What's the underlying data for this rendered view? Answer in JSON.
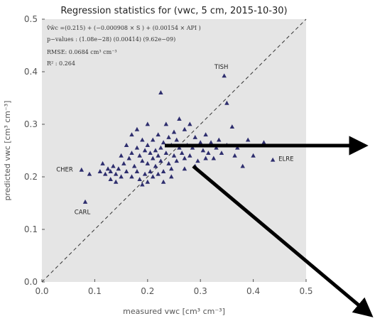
{
  "chart_data": {
    "type": "scatter",
    "title": "Regression statistics for (vwc, 5 cm, 2015-10-30)",
    "xlabel": "measured vwc [cm³  cm⁻³]",
    "ylabel": "predicted vwc [cm³  cm⁻³]",
    "xlim": [
      0.0,
      0.5
    ],
    "ylim": [
      0.0,
      0.5
    ],
    "xticks": [
      "0.0",
      "0.1",
      "0.2",
      "0.3",
      "0.4",
      "0.5"
    ],
    "yticks": [
      "0.0",
      "0.1",
      "0.2",
      "0.3",
      "0.4",
      "0.5"
    ],
    "grid": false,
    "background": "#e5e5e5",
    "marker_color": "#2e2e6e",
    "reference_line": "1:1 dashed",
    "annotations": [
      "v̂w̃c =(0.215) + (−0.000908 × S ) + (0.00154 × API )",
      "p−values : (1.08e−28) (0.00414) (9.62e−09)",
      "RMSE: 0.0684 cm³ cm⁻³",
      "R² : 0.264"
    ],
    "labeled_points": [
      {
        "label": "TISH",
        "x": 0.345,
        "y": 0.392
      },
      {
        "label": "ELRE",
        "x": 0.437,
        "y": 0.232
      },
      {
        "label": "CHER",
        "x": 0.075,
        "y": 0.213
      },
      {
        "label": "CARL",
        "x": 0.082,
        "y": 0.152
      }
    ],
    "points": [
      [
        0.09,
        0.205
      ],
      [
        0.11,
        0.21
      ],
      [
        0.115,
        0.225
      ],
      [
        0.12,
        0.205
      ],
      [
        0.125,
        0.215
      ],
      [
        0.13,
        0.21
      ],
      [
        0.13,
        0.195
      ],
      [
        0.135,
        0.22
      ],
      [
        0.14,
        0.205
      ],
      [
        0.14,
        0.19
      ],
      [
        0.145,
        0.215
      ],
      [
        0.15,
        0.24
      ],
      [
        0.15,
        0.2
      ],
      [
        0.155,
        0.225
      ],
      [
        0.16,
        0.26
      ],
      [
        0.16,
        0.21
      ],
      [
        0.165,
        0.235
      ],
      [
        0.17,
        0.28
      ],
      [
        0.17,
        0.245
      ],
      [
        0.17,
        0.2
      ],
      [
        0.175,
        0.22
      ],
      [
        0.18,
        0.29
      ],
      [
        0.18,
        0.255
      ],
      [
        0.18,
        0.21
      ],
      [
        0.185,
        0.24
      ],
      [
        0.185,
        0.195
      ],
      [
        0.19,
        0.27
      ],
      [
        0.19,
        0.23
      ],
      [
        0.19,
        0.185
      ],
      [
        0.195,
        0.25
      ],
      [
        0.195,
        0.205
      ],
      [
        0.2,
        0.3
      ],
      [
        0.2,
        0.26
      ],
      [
        0.2,
        0.225
      ],
      [
        0.2,
        0.19
      ],
      [
        0.205,
        0.245
      ],
      [
        0.205,
        0.21
      ],
      [
        0.21,
        0.27
      ],
      [
        0.21,
        0.235
      ],
      [
        0.21,
        0.2
      ],
      [
        0.215,
        0.25
      ],
      [
        0.215,
        0.22
      ],
      [
        0.22,
        0.28
      ],
      [
        0.22,
        0.24
      ],
      [
        0.22,
        0.205
      ],
      [
        0.225,
        0.36
      ],
      [
        0.225,
        0.255
      ],
      [
        0.225,
        0.23
      ],
      [
        0.23,
        0.265
      ],
      [
        0.23,
        0.21
      ],
      [
        0.235,
        0.3
      ],
      [
        0.235,
        0.245
      ],
      [
        0.24,
        0.275
      ],
      [
        0.24,
        0.225
      ],
      [
        0.245,
        0.26
      ],
      [
        0.245,
        0.2
      ],
      [
        0.25,
        0.285
      ],
      [
        0.25,
        0.24
      ],
      [
        0.255,
        0.27
      ],
      [
        0.255,
        0.23
      ],
      [
        0.26,
        0.31
      ],
      [
        0.26,
        0.255
      ],
      [
        0.265,
        0.245
      ],
      [
        0.27,
        0.29
      ],
      [
        0.27,
        0.235
      ],
      [
        0.275,
        0.26
      ],
      [
        0.28,
        0.3
      ],
      [
        0.28,
        0.24
      ],
      [
        0.285,
        0.255
      ],
      [
        0.29,
        0.275
      ],
      [
        0.295,
        0.23
      ],
      [
        0.3,
        0.265
      ],
      [
        0.305,
        0.25
      ],
      [
        0.31,
        0.28
      ],
      [
        0.315,
        0.245
      ],
      [
        0.32,
        0.265
      ],
      [
        0.325,
        0.235
      ],
      [
        0.33,
        0.255
      ],
      [
        0.335,
        0.27
      ],
      [
        0.34,
        0.245
      ],
      [
        0.35,
        0.34
      ],
      [
        0.35,
        0.26
      ],
      [
        0.36,
        0.295
      ],
      [
        0.365,
        0.24
      ],
      [
        0.37,
        0.255
      ],
      [
        0.38,
        0.22
      ],
      [
        0.39,
        0.27
      ],
      [
        0.4,
        0.24
      ],
      [
        0.42,
        0.265
      ],
      [
        0.23,
        0.19
      ],
      [
        0.27,
        0.215
      ],
      [
        0.29,
        0.22
      ],
      [
        0.31,
        0.235
      ],
      [
        0.245,
        0.215
      ]
    ]
  },
  "overlay": {
    "arrow_color": "#000000",
    "arrow_count": 2
  }
}
